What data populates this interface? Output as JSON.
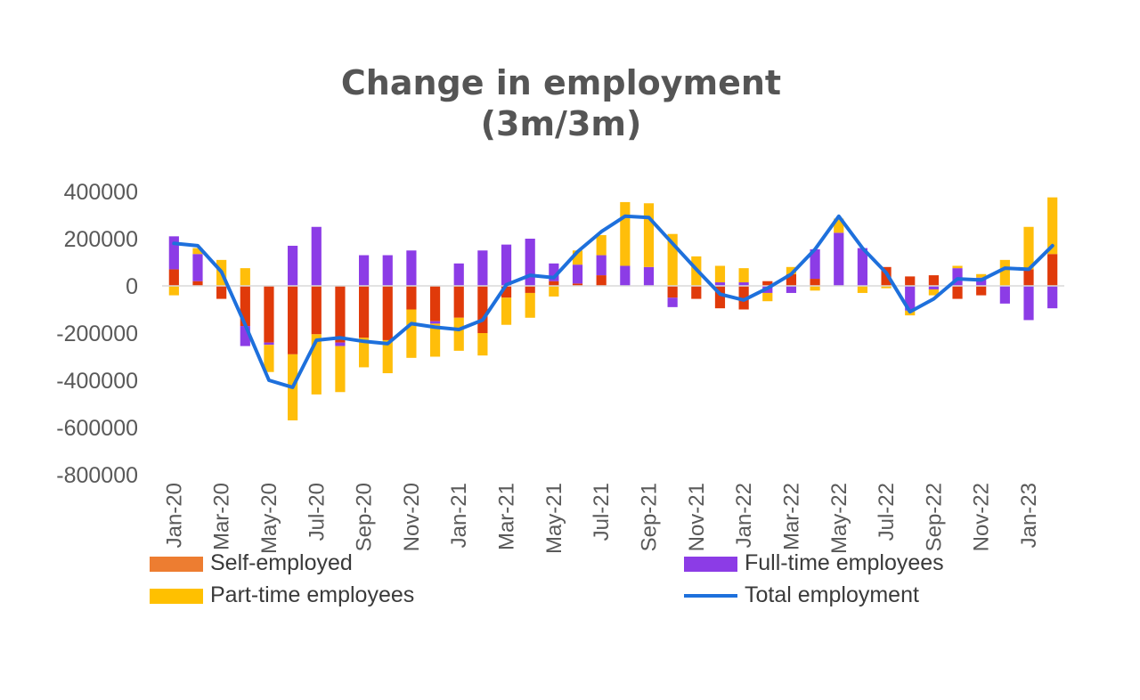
{
  "chart_data": {
    "type": "bar",
    "title": [
      "Change in employment",
      "(3m/3m)"
    ],
    "xlabel": "",
    "ylabel": "",
    "ylim": [
      -800000,
      400000
    ],
    "y_ticks": [
      "400000",
      "200000",
      "0",
      "-200000",
      "-400000",
      "-600000",
      "-800000"
    ],
    "categories": [
      "Jan-20",
      "Feb-20",
      "Mar-20",
      "Apr-20",
      "May-20",
      "Jun-20",
      "Jul-20",
      "Aug-20",
      "Sep-20",
      "Oct-20",
      "Nov-20",
      "Dec-20",
      "Jan-21",
      "Feb-21",
      "Mar-21",
      "Apr-21",
      "May-21",
      "Jun-21",
      "Jul-21",
      "Aug-21",
      "Sep-21",
      "Oct-21",
      "Nov-21",
      "Dec-21",
      "Jan-22",
      "Feb-22",
      "Mar-22",
      "Apr-22",
      "May-22",
      "Jun-22",
      "Jul-22",
      "Aug-22",
      "Sep-22",
      "Oct-22",
      "Nov-22",
      "Dec-22",
      "Jan-23",
      "Feb-23"
    ],
    "x_tick_labels": [
      "Jan-20",
      "Mar-20",
      "May-20",
      "Jul-20",
      "Sep-20",
      "Nov-20",
      "Jan-21",
      "Mar-21",
      "May-21",
      "Jul-21",
      "Sep-21",
      "Nov-21",
      "Jan-22",
      "Mar-22",
      "May-22",
      "Jul-22",
      "Sep-22",
      "Nov-22",
      "Jan-23"
    ],
    "stacked": true,
    "grid": false,
    "legend_position": "bottom",
    "series": [
      {
        "name": "Self-employed",
        "kind": "bar",
        "color": "#E03A0A",
        "values": [
          70000,
          20000,
          -55000,
          -170000,
          -240000,
          -290000,
          -205000,
          -240000,
          -220000,
          -230000,
          -100000,
          -150000,
          -135000,
          -200000,
          -50000,
          -30000,
          20000,
          10000,
          45000,
          0,
          0,
          -50000,
          -55000,
          -95000,
          -100000,
          20000,
          50000,
          30000,
          0,
          0,
          80000,
          40000,
          45000,
          -55000,
          -40000,
          0,
          70000,
          135000
        ]
      },
      {
        "name": "Full-time employees",
        "kind": "bar",
        "color": "#8C3CE6",
        "values": [
          140000,
          115000,
          0,
          -85000,
          -10000,
          170000,
          250000,
          -15000,
          130000,
          130000,
          150000,
          -10000,
          95000,
          150000,
          175000,
          200000,
          75000,
          80000,
          85000,
          85000,
          80000,
          -40000,
          0,
          15000,
          15000,
          -30000,
          -30000,
          125000,
          225000,
          160000,
          0,
          -105000,
          -15000,
          75000,
          35000,
          -75000,
          -145000,
          -95000
        ]
      },
      {
        "name": "Part-time employees",
        "kind": "bar",
        "color": "#FFBE0A",
        "values": [
          -40000,
          25000,
          110000,
          75000,
          -115000,
          -280000,
          -255000,
          -195000,
          -125000,
          -140000,
          -205000,
          -140000,
          -140000,
          -95000,
          -115000,
          -105000,
          -45000,
          60000,
          85000,
          270000,
          270000,
          220000,
          125000,
          70000,
          60000,
          -35000,
          30000,
          -20000,
          60000,
          -30000,
          -10000,
          -20000,
          -25000,
          10000,
          15000,
          110000,
          180000,
          240000
        ]
      },
      {
        "name": "Total employment",
        "kind": "line",
        "color": "#1E70DC",
        "values": [
          180000,
          170000,
          60000,
          -165000,
          -400000,
          -430000,
          -230000,
          -220000,
          -235000,
          -245000,
          -160000,
          -175000,
          -185000,
          -145000,
          5000,
          45000,
          35000,
          145000,
          230000,
          295000,
          290000,
          180000,
          70000,
          -35000,
          -60000,
          -10000,
          50000,
          155000,
          295000,
          160000,
          55000,
          -110000,
          -55000,
          30000,
          25000,
          75000,
          70000,
          170000
        ]
      }
    ]
  },
  "legend": {
    "self_employed": "Self-employed",
    "full_time": "Full-time employees",
    "part_time": "Part-time employees",
    "total": "Total employment"
  }
}
